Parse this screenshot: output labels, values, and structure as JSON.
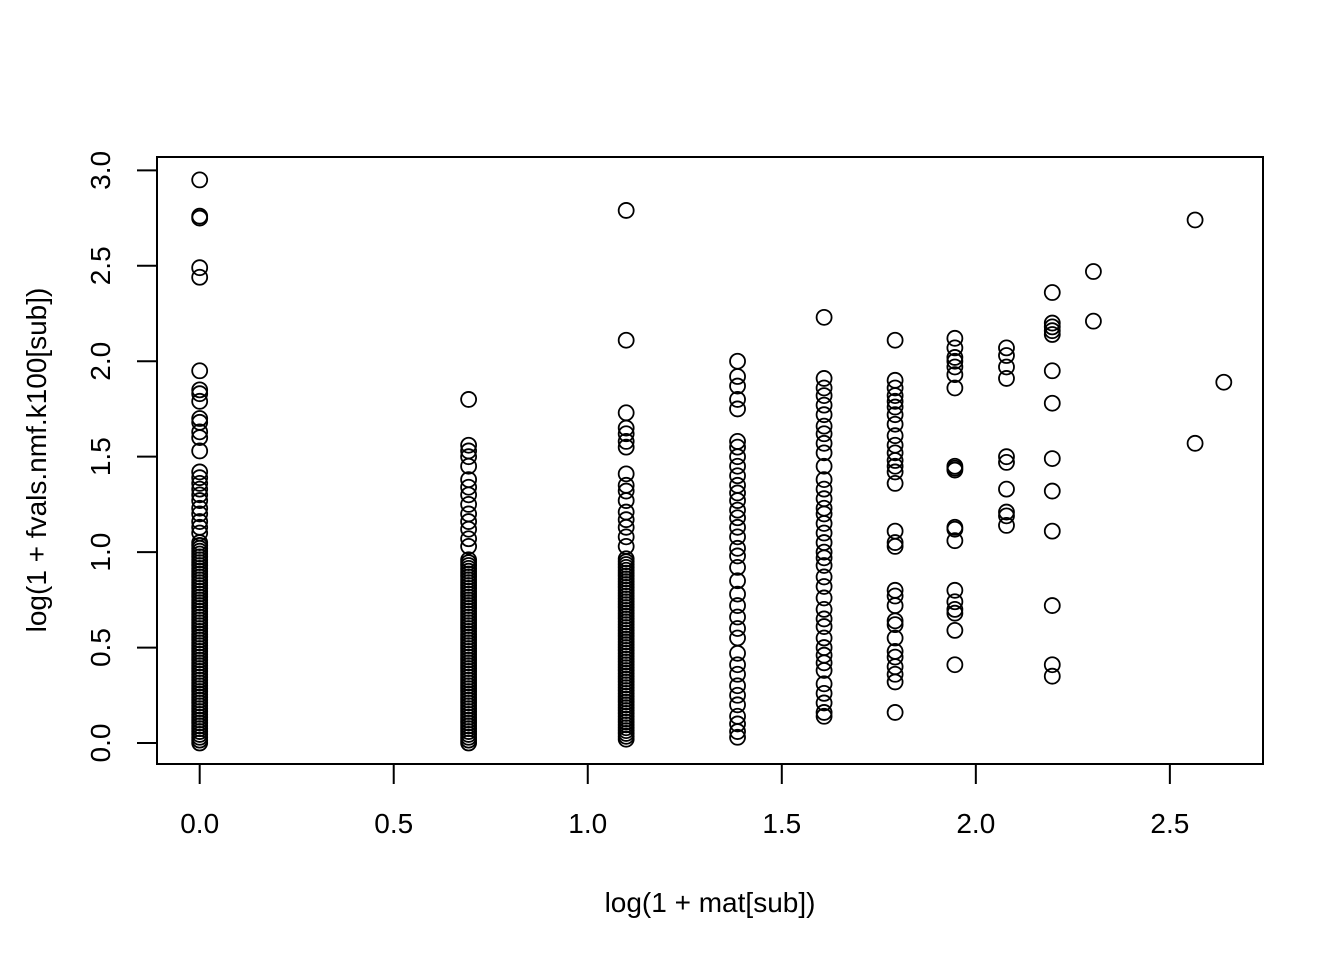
{
  "chart_data": {
    "type": "scatter",
    "title": "",
    "xlabel": "log(1 + mat[sub])",
    "ylabel": "log(1 + fvals.nmf.k100[sub])",
    "xlim": [
      -0.11,
      2.74
    ],
    "ylim": [
      -0.11,
      3.07
    ],
    "xticks": [
      0.0,
      0.5,
      1.0,
      1.5,
      2.0,
      2.5
    ],
    "xtick_labels": [
      "0.0",
      "0.5",
      "1.0",
      "1.5",
      "2.0",
      "2.5"
    ],
    "yticks": [
      0.0,
      0.5,
      1.0,
      1.5,
      2.0,
      2.5,
      3.0
    ],
    "ytick_labels": [
      "0.0",
      "0.5",
      "1.0",
      "1.5",
      "2.0",
      "2.5",
      "3.0"
    ],
    "grid": false,
    "marker": "open-circle",
    "marker_color": "#000000",
    "columns": [
      {
        "x": 0.0,
        "dense_range": [
          0.0,
          1.06
        ],
        "y": [
          1.1,
          1.13,
          1.16,
          1.2,
          1.23,
          1.27,
          1.3,
          1.33,
          1.36,
          1.39,
          1.42,
          1.53,
          1.6,
          1.63,
          1.68,
          1.7,
          1.79,
          1.83,
          1.85,
          1.95,
          2.44,
          2.49,
          2.75,
          2.76,
          2.95
        ]
      },
      {
        "x": 0.693,
        "dense_range": [
          0.0,
          0.97
        ],
        "y": [
          1.03,
          1.07,
          1.12,
          1.16,
          1.2,
          1.25,
          1.3,
          1.34,
          1.38,
          1.45,
          1.5,
          1.53,
          1.56,
          1.8
        ]
      },
      {
        "x": 1.099,
        "dense_range": [
          0.02,
          0.97
        ],
        "y": [
          1.03,
          1.08,
          1.13,
          1.17,
          1.21,
          1.27,
          1.32,
          1.35,
          1.41,
          1.55,
          1.58,
          1.62,
          1.65,
          1.73,
          2.11,
          2.79
        ]
      },
      {
        "x": 1.386,
        "y": [
          0.03,
          0.06,
          0.1,
          0.14,
          0.2,
          0.25,
          0.3,
          0.36,
          0.41,
          0.47,
          0.55,
          0.6,
          0.66,
          0.72,
          0.78,
          0.85,
          0.92,
          0.98,
          1.02,
          1.08,
          1.13,
          1.18,
          1.22,
          1.27,
          1.31,
          1.35,
          1.4,
          1.45,
          1.5,
          1.55,
          1.58,
          1.75,
          1.8,
          1.87,
          1.92,
          2.0
        ]
      },
      {
        "x": 1.609,
        "y": [
          0.14,
          0.16,
          0.21,
          0.26,
          0.31,
          0.38,
          0.42,
          0.46,
          0.5,
          0.55,
          0.61,
          0.65,
          0.7,
          0.76,
          0.82,
          0.87,
          0.93,
          0.97,
          1.0,
          1.05,
          1.1,
          1.15,
          1.2,
          1.23,
          1.28,
          1.33,
          1.38,
          1.45,
          1.52,
          1.57,
          1.62,
          1.66,
          1.72,
          1.77,
          1.82,
          1.86,
          1.91,
          2.23
        ]
      },
      {
        "x": 1.792,
        "y": [
          0.16,
          0.32,
          0.36,
          0.4,
          0.45,
          0.48,
          0.55,
          0.62,
          0.64,
          0.72,
          0.77,
          0.8,
          1.03,
          1.05,
          1.11,
          1.36,
          1.42,
          1.45,
          1.48,
          1.52,
          1.56,
          1.61,
          1.67,
          1.72,
          1.76,
          1.79,
          1.82,
          1.86,
          1.9,
          2.11
        ]
      },
      {
        "x": 1.946,
        "y": [
          0.41,
          0.59,
          0.68,
          0.7,
          0.74,
          0.8,
          1.06,
          1.12,
          1.13,
          1.43,
          1.44,
          1.45,
          1.86,
          1.93,
          1.97,
          2.0,
          2.02,
          2.07,
          2.12
        ]
      },
      {
        "x": 2.079,
        "y": [
          1.14,
          1.19,
          1.21,
          1.33,
          1.47,
          1.5,
          1.91,
          1.97,
          2.03,
          2.07
        ]
      },
      {
        "x": 2.197,
        "y": [
          0.35,
          0.41,
          0.72,
          1.11,
          1.32,
          1.49,
          1.78,
          1.95,
          2.14,
          2.16,
          2.18,
          2.2,
          2.36
        ]
      },
      {
        "x": 2.303,
        "y": [
          2.21,
          2.47
        ]
      },
      {
        "x": 2.565,
        "y": [
          1.57,
          2.74
        ]
      },
      {
        "x": 2.639,
        "y": [
          1.89
        ]
      }
    ]
  }
}
